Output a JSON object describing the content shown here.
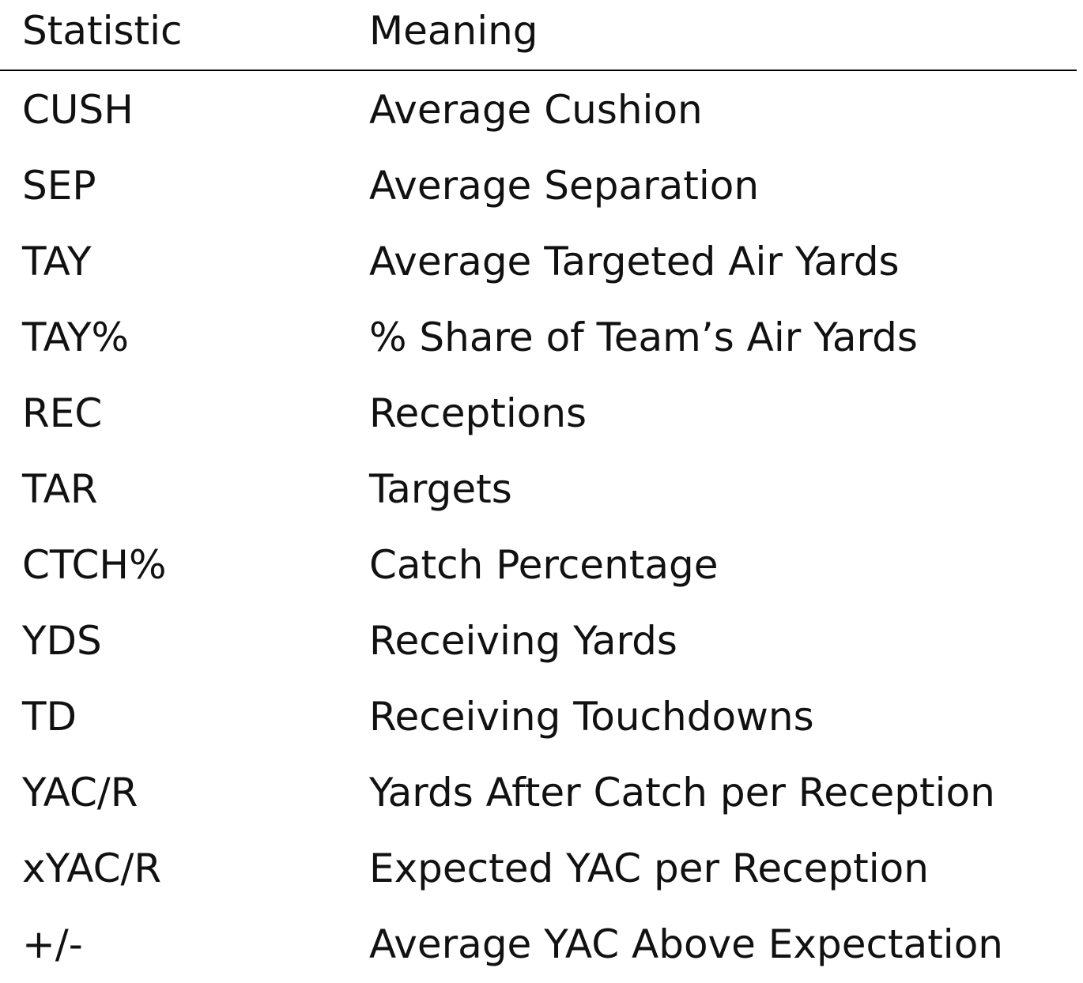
{
  "table": {
    "headers": {
      "statistic": "Statistic",
      "meaning": "Meaning"
    },
    "rows": [
      {
        "statistic": "CUSH",
        "meaning": "Average Cushion"
      },
      {
        "statistic": "SEP",
        "meaning": "Average Separation"
      },
      {
        "statistic": "TAY",
        "meaning": "Average Targeted Air Yards"
      },
      {
        "statistic": "TAY%",
        "meaning": "% Share of Team’s Air Yards"
      },
      {
        "statistic": "REC",
        "meaning": "Receptions"
      },
      {
        "statistic": "TAR",
        "meaning": "Targets"
      },
      {
        "statistic": "CTCH%",
        "meaning": "Catch Percentage"
      },
      {
        "statistic": "YDS",
        "meaning": "Receiving Yards"
      },
      {
        "statistic": "TD",
        "meaning": "Receiving Touchdowns"
      },
      {
        "statistic": "YAC/R",
        "meaning": "Yards After Catch per Reception"
      },
      {
        "statistic": "xYAC/R",
        "meaning": "Expected YAC per Reception"
      },
      {
        "statistic": "+/-",
        "meaning": "Average YAC Above Expectation"
      }
    ]
  }
}
